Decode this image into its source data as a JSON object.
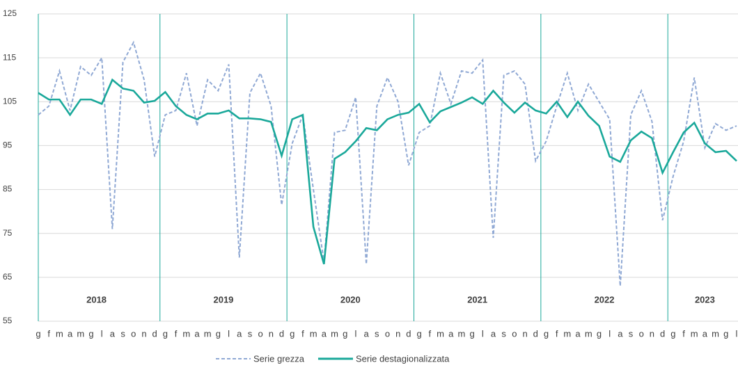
{
  "chart_data": {
    "type": "line",
    "categories": [
      "g",
      "f",
      "m",
      "a",
      "m",
      "g",
      "l",
      "a",
      "s",
      "o",
      "n",
      "d",
      "g",
      "f",
      "m",
      "a",
      "m",
      "g",
      "l",
      "a",
      "s",
      "o",
      "n",
      "d",
      "g",
      "f",
      "m",
      "a",
      "m",
      "g",
      "l",
      "a",
      "s",
      "o",
      "n",
      "d",
      "g",
      "f",
      "m",
      "a",
      "m",
      "g",
      "l",
      "a",
      "s",
      "o",
      "n",
      "d",
      "g",
      "f",
      "m",
      "a",
      "m",
      "g",
      "l",
      "a",
      "s",
      "o",
      "n",
      "d",
      "g",
      "f",
      "m",
      "a",
      "m",
      "g",
      "l"
    ],
    "years": [
      "2018",
      "2019",
      "2020",
      "2021",
      "2022",
      "2023"
    ],
    "series": [
      {
        "name": "Serie grezza",
        "color": "#8fa8d4",
        "dashed": true,
        "values": [
          102,
          104,
          112,
          103,
          113,
          111,
          115,
          76,
          114,
          118.5,
          110,
          92.5,
          102,
          103,
          111.5,
          99.5,
          110,
          107.5,
          113.5,
          69.5,
          107,
          111.5,
          104,
          81.5,
          95.5,
          102,
          85,
          68.5,
          98,
          98.5,
          106,
          68,
          104,
          110.5,
          105,
          90.5,
          98,
          99.5,
          111.5,
          104.5,
          112,
          111.5,
          114.5,
          74,
          111,
          112,
          109,
          91.5,
          96,
          104,
          111.5,
          103,
          109,
          105,
          101,
          63,
          102,
          107.5,
          100.5,
          78,
          88,
          96,
          110.5,
          94.5,
          100,
          98.5,
          99.5
        ]
      },
      {
        "name": "Serie destagionalizzata",
        "color": "#1aa89a",
        "dashed": false,
        "values": [
          107,
          105.5,
          105.5,
          102,
          105.5,
          105.5,
          104.5,
          110,
          108,
          107.5,
          104.8,
          105.2,
          107.2,
          104,
          102,
          101,
          102.3,
          102.3,
          103,
          101.2,
          101.2,
          101,
          100.4,
          92.7,
          101,
          102,
          76.5,
          68,
          92,
          93.5,
          96,
          99,
          98.5,
          101,
          102,
          102.5,
          104.5,
          100.3,
          102.8,
          103.8,
          104.8,
          106,
          104.5,
          107.5,
          104.8,
          102.5,
          104.8,
          103,
          102.3,
          105,
          101.5,
          105,
          101.8,
          99.5,
          92.5,
          91.3,
          96.2,
          98.2,
          96.7,
          88.8,
          93.5,
          98,
          100.2,
          95.5,
          93.5,
          93.8,
          91.5
        ]
      }
    ],
    "ylim": [
      55,
      125
    ],
    "yticks": [
      55,
      65,
      75,
      85,
      95,
      105,
      115,
      125
    ],
    "grid": true
  }
}
